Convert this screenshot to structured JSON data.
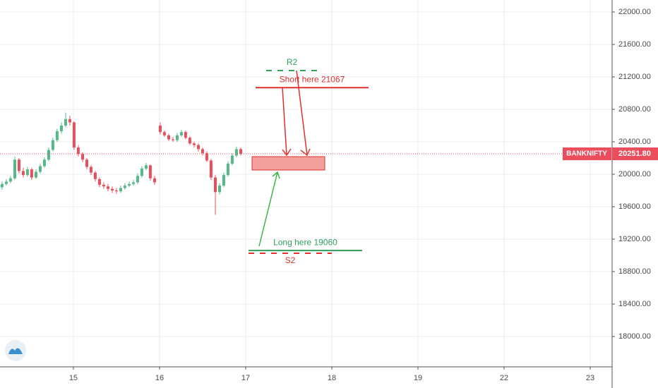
{
  "chart_data": {
    "type": "candlestick",
    "x": [
      -0.828,
      -0.779,
      -0.73,
      -0.68,
      -0.631,
      -0.582,
      -0.533,
      -0.484,
      -0.434,
      -0.385,
      -0.336,
      -0.287,
      -0.238,
      -0.189,
      -0.139,
      -0.09,
      -0.041,
      0.008,
      0.057,
      0.107,
      0.156,
      0.205,
      0.254,
      0.303,
      0.352,
      0.402,
      0.451,
      0.5,
      0.549,
      0.598,
      0.648,
      0.697,
      0.746,
      0.795,
      0.844,
      0.893,
      0.943,
      1.008,
      1.057,
      1.107,
      1.156,
      1.205,
      1.254,
      1.303,
      1.352,
      1.402,
      1.451,
      1.5,
      1.549,
      1.598,
      1.648,
      1.697,
      1.746,
      1.795,
      1.844,
      1.893,
      1.943
    ],
    "open": [
      19840,
      19880,
      19910,
      19950,
      20180,
      20040,
      19990,
      20060,
      19960,
      20030,
      20100,
      20180,
      20300,
      20420,
      20530,
      20600,
      20680,
      20640,
      20330,
      20250,
      20180,
      20090,
      20020,
      19940,
      19870,
      19850,
      19820,
      19800,
      19790,
      19830,
      19860,
      19880,
      19900,
      19980,
      20070,
      20110,
      19950,
      20600,
      20520,
      20480,
      20430,
      20420,
      20480,
      20520,
      20450,
      20380,
      20360,
      20310,
      20260,
      20170,
      19960,
      19780,
      19860,
      19990,
      20130,
      20230,
      20310
    ],
    "high": [
      19910,
      19940,
      19980,
      20220,
      20200,
      20080,
      20090,
      20080,
      20060,
      20130,
      20210,
      20330,
      20450,
      20560,
      20640,
      20760,
      20720,
      20650,
      20360,
      20270,
      20200,
      20110,
      20040,
      19960,
      19900,
      19880,
      19850,
      19830,
      19860,
      19890,
      19910,
      19930,
      20010,
      20100,
      20140,
      20120,
      19980,
      20640,
      20540,
      20500,
      20460,
      20510,
      20550,
      20540,
      20470,
      20400,
      20380,
      20330,
      20280,
      20190,
      19990,
      19890,
      20020,
      20160,
      20260,
      20340,
      20330
    ],
    "low": [
      19810,
      19860,
      19890,
      19930,
      20010,
      19960,
      19970,
      19930,
      19940,
      20010,
      20080,
      20160,
      20280,
      20400,
      20500,
      20580,
      20600,
      20300,
      20220,
      20150,
      20060,
      19990,
      19910,
      19840,
      19820,
      19790,
      19770,
      19760,
      19770,
      19810,
      19840,
      19860,
      19880,
      19960,
      20050,
      19920,
      19870,
      20490,
      20460,
      20410,
      20400,
      20400,
      20460,
      20430,
      20360,
      20330,
      20280,
      20230,
      20150,
      19930,
      19500,
      19750,
      19840,
      19970,
      20110,
      20210,
      20230
    ],
    "close": [
      19880,
      19910,
      19950,
      20180,
      20040,
      19990,
      20060,
      19960,
      20030,
      20100,
      20180,
      20300,
      20420,
      20530,
      20600,
      20680,
      20640,
      20330,
      20250,
      20180,
      20090,
      20020,
      19940,
      19870,
      19850,
      19820,
      19800,
      19790,
      19830,
      19860,
      19880,
      19900,
      19980,
      20070,
      20110,
      19950,
      19900,
      20520,
      20480,
      20430,
      20420,
      20480,
      20520,
      20450,
      20380,
      20360,
      20310,
      20260,
      20170,
      19960,
      19780,
      19860,
      19990,
      20130,
      20230,
      20310,
      20251.8
    ],
    "up_color": "#53b987",
    "down_color": "#eb4d5c",
    "xlim": [
      -0.852,
      6.254
    ],
    "ylim": [
      17626,
      22148
    ],
    "xticks": [
      {
        "value": 0,
        "label": "15"
      },
      {
        "value": 1,
        "label": "16"
      },
      {
        "value": 2,
        "label": "17"
      },
      {
        "value": 3,
        "label": "18"
      },
      {
        "value": 4,
        "label": "19"
      },
      {
        "value": 5,
        "label": "22"
      },
      {
        "value": 6,
        "label": "23"
      }
    ],
    "yticks": [
      {
        "value": 18000,
        "label": "18000.00"
      },
      {
        "value": 18400,
        "label": "18400.00"
      },
      {
        "value": 18800,
        "label": "18800.00"
      },
      {
        "value": 19200,
        "label": "19200.00"
      },
      {
        "value": 19600,
        "label": "19600.00"
      },
      {
        "value": 20000,
        "label": "20000.00"
      },
      {
        "value": 20400,
        "label": "20400.00"
      },
      {
        "value": 20800,
        "label": "20800.00"
      },
      {
        "value": 21200,
        "label": "21200.00"
      },
      {
        "value": 21600,
        "label": "21600.00"
      },
      {
        "value": 22000,
        "label": "22000.00"
      }
    ],
    "grid": true,
    "last_price": {
      "symbol": "BANKNIFTY",
      "value": 20251.8,
      "label": "20251.80",
      "color": "#eb4d5c"
    },
    "annotations": [
      {
        "label": "R2",
        "price": 21278,
        "x": [
          2.238,
          2.836
        ],
        "color": "#2e9e5b",
        "dashed": true,
        "label_position": "above"
      },
      {
        "label": "Short here 21067",
        "price": 21067,
        "x": [
          2.115,
          3.426
        ],
        "color": "#e0302c",
        "dashed": false,
        "label_position": "above"
      },
      {
        "label": "Long here 19060",
        "price": 19060,
        "x": [
          2.033,
          3.352
        ],
        "color": "#2e9e5b",
        "dashed": false,
        "label_position": "above"
      },
      {
        "label": "S2",
        "price": 19026,
        "x": [
          2.033,
          3.0
        ],
        "color": "#e0302c",
        "dashed": true,
        "label_position": "below"
      }
    ],
    "zone": {
      "price": [
        20052,
        20217
      ],
      "x": [
        2.074,
        2.918
      ],
      "color": "#f4a09c"
    }
  }
}
